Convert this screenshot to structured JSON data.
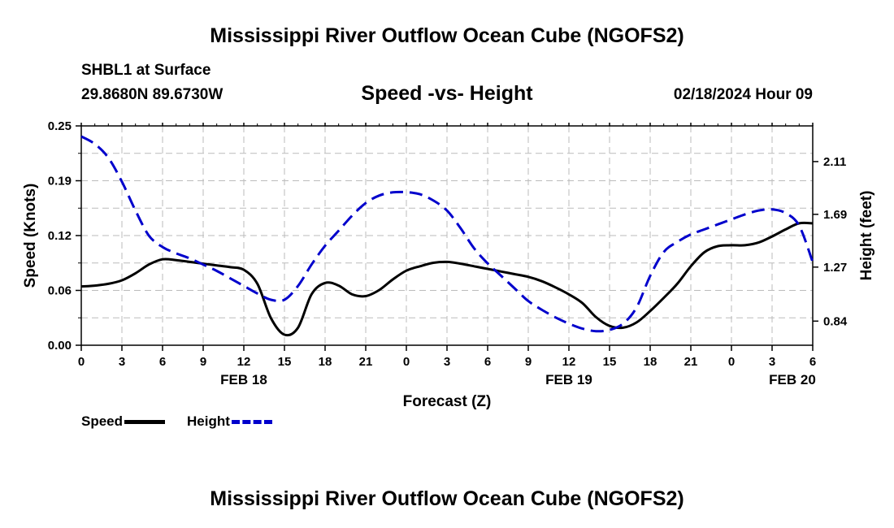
{
  "header": {
    "title": "Mississippi River Outflow Ocean Cube (NGOFS2)",
    "station": "SHBL1 at Surface",
    "coords": "29.8680N  89.6730W",
    "subtitle": "Speed -vs- Height",
    "datetime": "02/18/2024 Hour 09"
  },
  "footer": {
    "title": "Mississippi River Outflow Ocean Cube (NGOFS2)"
  },
  "legend": {
    "speed": "Speed",
    "height": "Height"
  },
  "colors": {
    "speed": "#000000",
    "height": "#0000cc",
    "grid": "#bbbbbb"
  },
  "chart_data": {
    "type": "line",
    "xlabel": "Forecast (Z)",
    "ylabel_left": "Speed (Knots)",
    "ylabel_right": "Height (feet)",
    "xlim": [
      0,
      54
    ],
    "ylim_left": [
      0,
      0.25
    ],
    "ylim_right": [
      0.648,
      2.394
    ],
    "x_tick_values": [
      0,
      3,
      6,
      9,
      12,
      15,
      18,
      21,
      24,
      27,
      30,
      33,
      36,
      39,
      42,
      45,
      48,
      51,
      54
    ],
    "x_tick_labels": [
      "0",
      "3",
      "6",
      "9",
      "12",
      "15",
      "18",
      "21",
      "0",
      "3",
      "6",
      "9",
      "12",
      "15",
      "18",
      "21",
      "0",
      "3",
      "6"
    ],
    "date_labels": [
      {
        "x": 12,
        "label": "FEB 18"
      },
      {
        "x": 36,
        "label": "FEB 19"
      },
      {
        "x": 52.5,
        "label": "FEB 20"
      }
    ],
    "y_left_ticks": [
      "0.00",
      "0.06",
      "0.12",
      "0.19",
      "0.25"
    ],
    "y_left_tick_values": [
      0,
      0.0625,
      0.125,
      0.1875,
      0.25
    ],
    "y_right_ticks": [
      "0.84",
      "1.27",
      "1.69",
      "2.11"
    ],
    "y_right_tick_values": [
      0.84,
      1.27,
      1.69,
      2.11
    ],
    "series": [
      {
        "name": "Speed",
        "axis": "left",
        "style": "solid",
        "x": [
          0,
          1,
          2,
          3,
          4,
          5,
          6,
          7,
          8,
          9,
          10,
          11,
          12,
          13,
          14,
          15,
          16,
          17,
          18,
          19,
          20,
          21,
          22,
          23,
          24,
          25,
          26,
          27,
          28,
          29,
          30,
          31,
          32,
          33,
          34,
          35,
          36,
          37,
          38,
          39,
          40,
          41,
          42,
          43,
          44,
          45,
          46,
          47,
          48,
          49,
          50,
          51,
          52,
          53,
          54
        ],
        "values": [
          0.067,
          0.068,
          0.07,
          0.074,
          0.082,
          0.092,
          0.098,
          0.097,
          0.095,
          0.093,
          0.091,
          0.089,
          0.086,
          0.07,
          0.031,
          0.012,
          0.02,
          0.058,
          0.071,
          0.068,
          0.058,
          0.056,
          0.063,
          0.075,
          0.085,
          0.09,
          0.094,
          0.095,
          0.093,
          0.09,
          0.087,
          0.084,
          0.081,
          0.078,
          0.073,
          0.066,
          0.058,
          0.048,
          0.032,
          0.022,
          0.02,
          0.026,
          0.039,
          0.054,
          0.07,
          0.09,
          0.106,
          0.113,
          0.114,
          0.114,
          0.117,
          0.124,
          0.132,
          0.139,
          0.139
        ]
      },
      {
        "name": "Height",
        "axis": "right",
        "style": "dashed",
        "x": [
          0,
          1,
          2,
          3,
          4,
          5,
          6,
          7,
          8,
          9,
          10,
          11,
          12,
          13,
          14,
          15,
          16,
          17,
          18,
          19,
          20,
          21,
          22,
          23,
          24,
          25,
          26,
          27,
          28,
          29,
          30,
          31,
          32,
          33,
          34,
          35,
          36,
          37,
          38,
          39,
          40,
          41,
          42,
          43,
          44,
          45,
          46,
          47,
          48,
          49,
          50,
          51,
          52,
          53,
          54
        ],
        "values": [
          2.31,
          2.25,
          2.14,
          1.95,
          1.72,
          1.52,
          1.43,
          1.38,
          1.34,
          1.29,
          1.24,
          1.18,
          1.12,
          1.06,
          1.01,
          1.01,
          1.12,
          1.29,
          1.44,
          1.56,
          1.68,
          1.78,
          1.84,
          1.865,
          1.866,
          1.85,
          1.8,
          1.72,
          1.58,
          1.42,
          1.3,
          1.2,
          1.1,
          1.0,
          0.93,
          0.87,
          0.82,
          0.78,
          0.76,
          0.77,
          0.82,
          0.95,
          1.2,
          1.39,
          1.47,
          1.53,
          1.57,
          1.61,
          1.65,
          1.69,
          1.72,
          1.73,
          1.7,
          1.6,
          1.31
        ]
      }
    ]
  }
}
